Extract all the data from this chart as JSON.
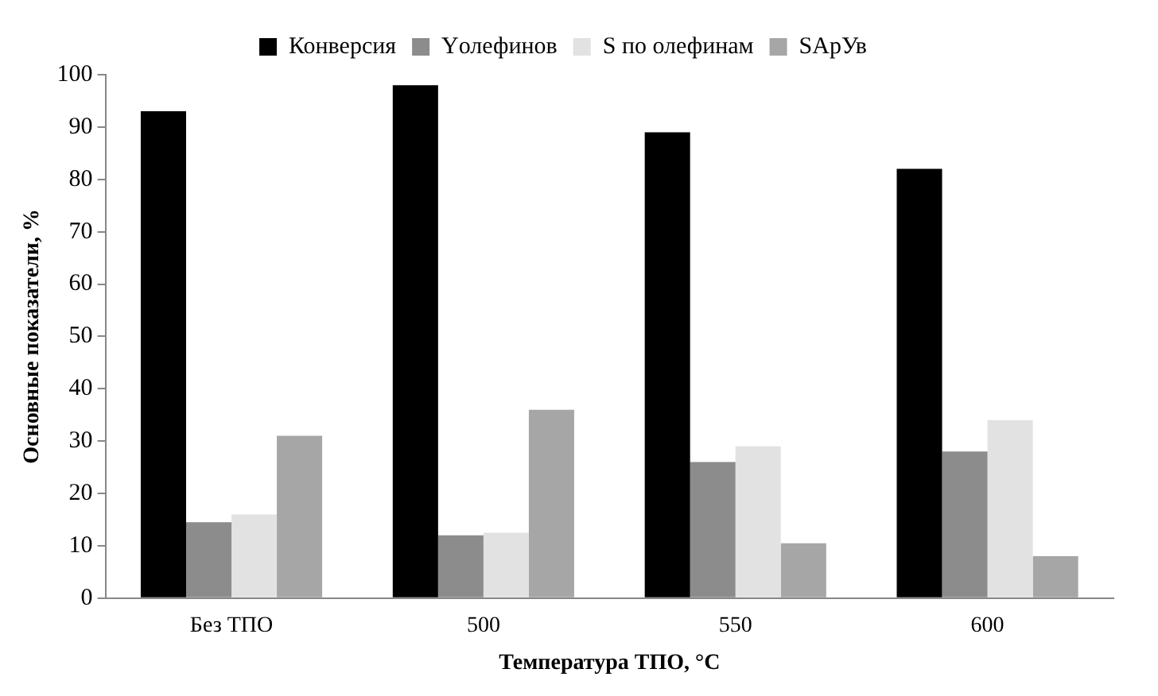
{
  "chart_data": {
    "type": "bar",
    "xlabel": "Температура ТПО, °С",
    "ylabel": "Основные показатели, %",
    "categories": [
      "Без ТПО",
      "500",
      "550",
      "600"
    ],
    "series": [
      {
        "name": "Конверсия",
        "color": "#000000",
        "values": [
          93,
          98,
          89,
          82
        ]
      },
      {
        "name": "Yолефинов",
        "color": "#8c8c8c",
        "values": [
          14.5,
          12,
          26,
          28
        ]
      },
      {
        "name": "S по олефинам",
        "color": "#e2e2e2",
        "values": [
          16,
          12.5,
          29,
          34
        ]
      },
      {
        "name": "SАрУв",
        "color": "#a6a6a6",
        "values": [
          31,
          36,
          10.5,
          8
        ]
      }
    ],
    "ylim": [
      0,
      100
    ],
    "yticks": [
      0,
      10,
      20,
      30,
      40,
      50,
      60,
      70,
      80,
      90,
      100
    ],
    "grid": false,
    "legend": "top"
  }
}
